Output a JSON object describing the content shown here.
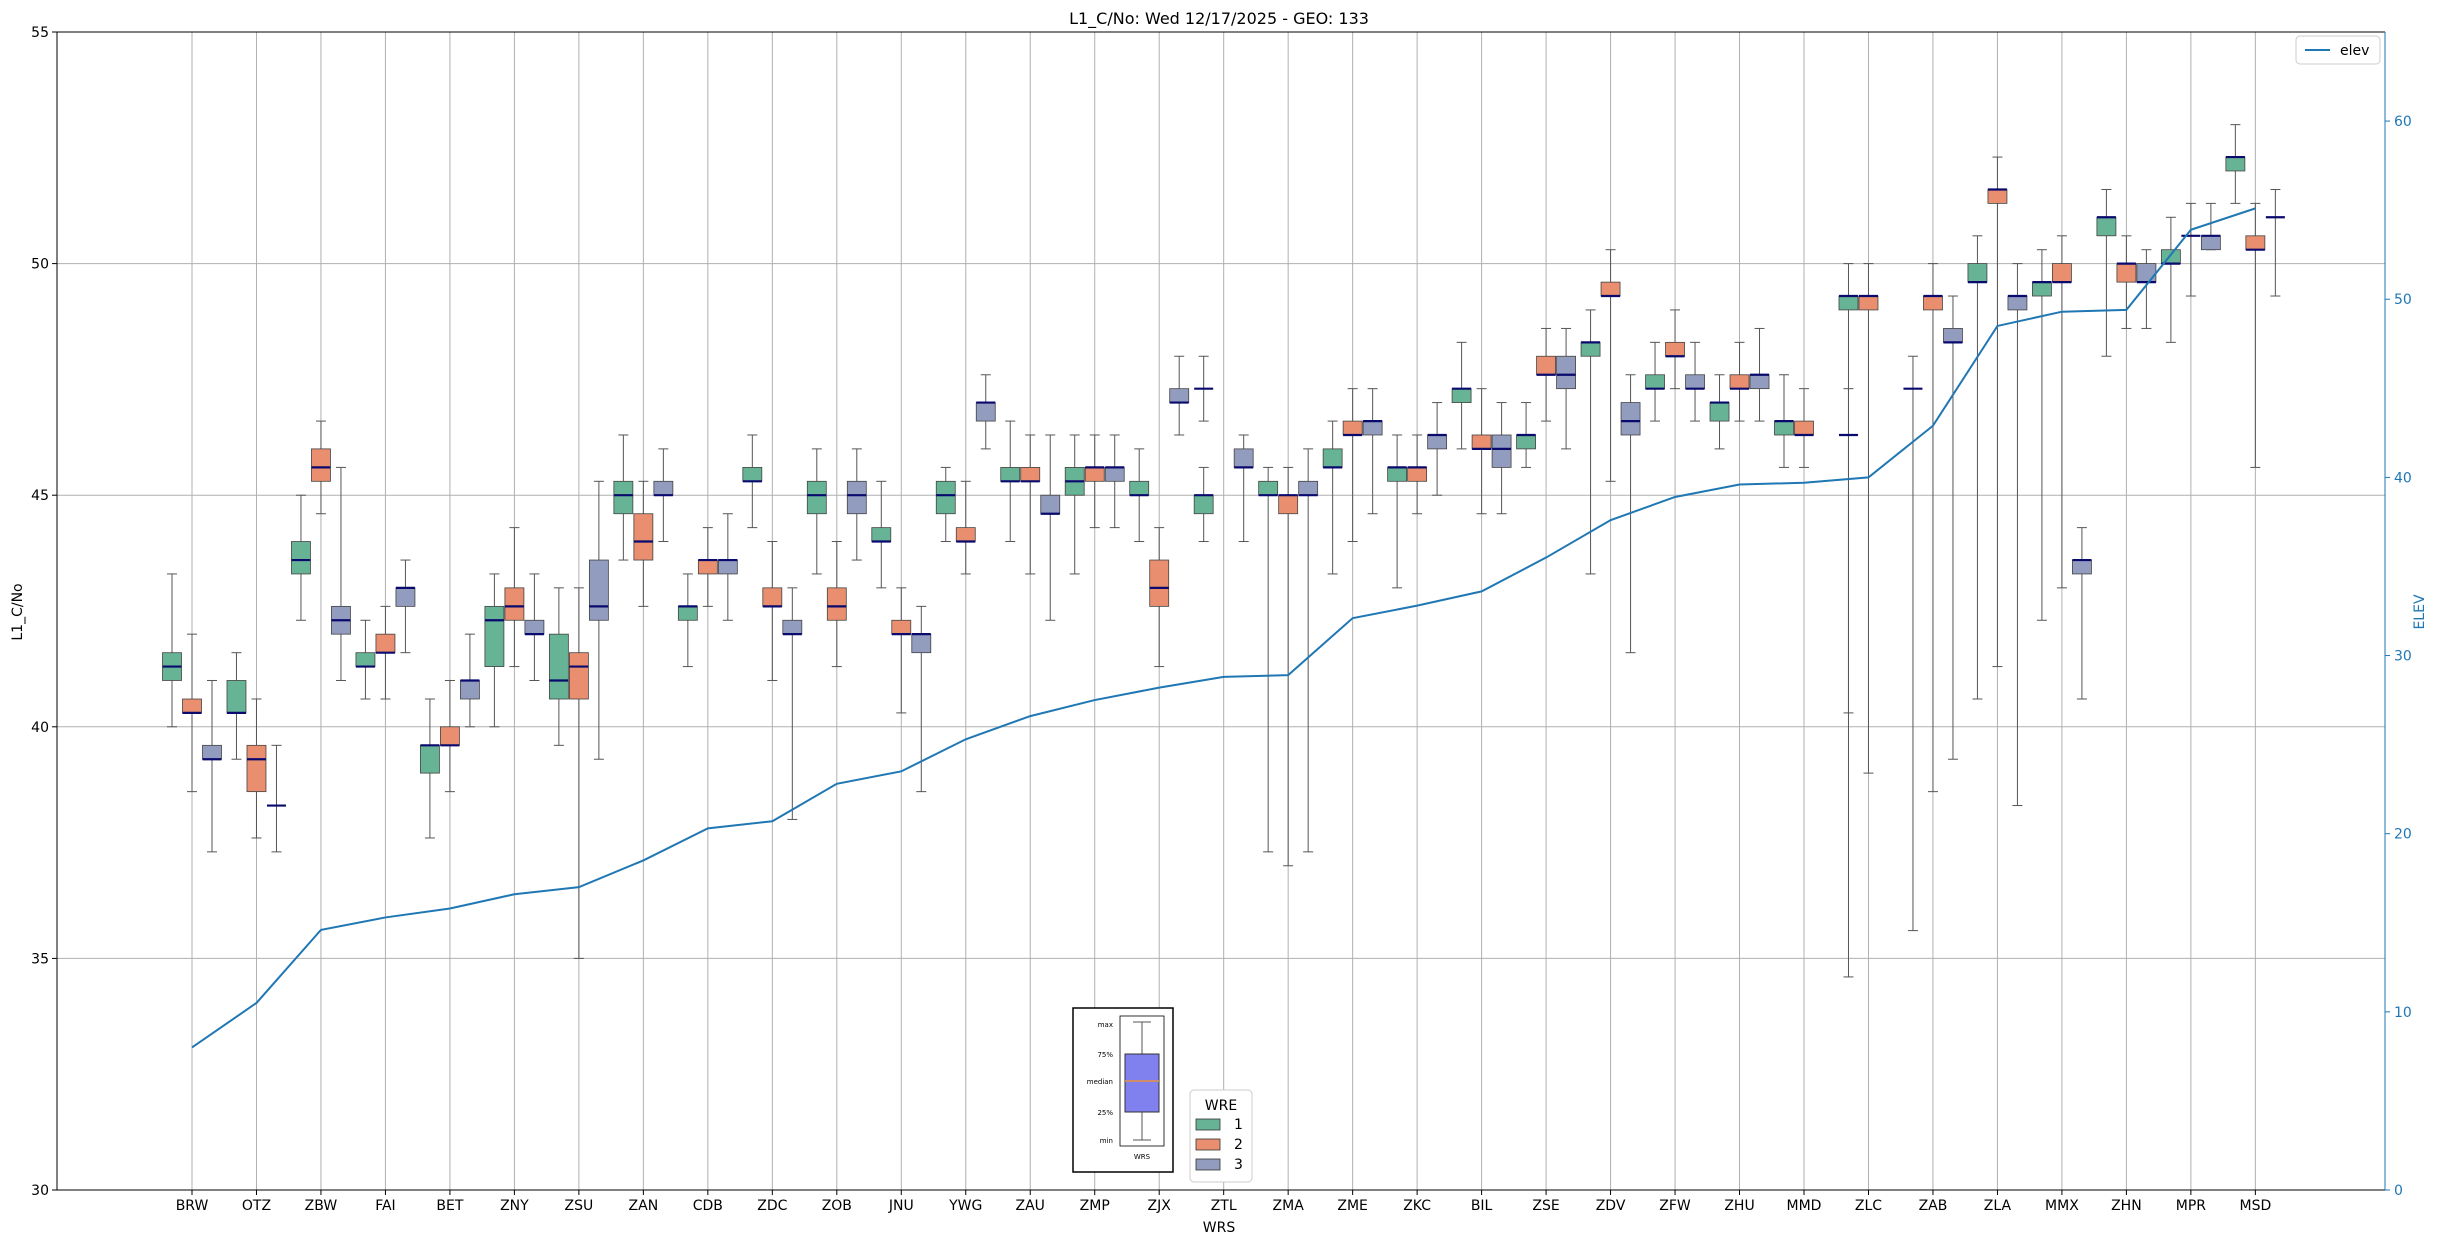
{
  "chart_data": {
    "type": "box",
    "title": "L1_C/No: Wed 12/17/2025 - GEO: 133",
    "xlabel": "WRS",
    "ylabel": "L1_C/No",
    "y2label": "ELEV",
    "ylim": [
      30,
      55
    ],
    "y2lim": [
      0,
      65
    ],
    "yticks": [
      30,
      35,
      40,
      45,
      50,
      55
    ],
    "y2ticks": [
      0,
      10,
      20,
      30,
      40,
      50,
      60
    ],
    "grid": true,
    "categories": [
      "BRW",
      "OTZ",
      "ZBW",
      "FAI",
      "BET",
      "ZNY",
      "ZSU",
      "ZAN",
      "CDB",
      "ZDC",
      "ZOB",
      "JNU",
      "YWG",
      "ZAU",
      "ZMP",
      "ZJX",
      "ZTL",
      "ZMA",
      "ZME",
      "ZKC",
      "BIL",
      "ZSE",
      "ZDV",
      "ZFW",
      "ZHU",
      "MMD",
      "ZLC",
      "ZAB",
      "ZLA",
      "MMX",
      "ZHN",
      "MPR",
      "MSD"
    ],
    "legend": {
      "title": "WRE",
      "placement": "bottom-center",
      "entries": [
        {
          "label": "1",
          "color": "#66b395"
        },
        {
          "label": "2",
          "color": "#e98f6f"
        },
        {
          "label": "3",
          "color": "#919cbf"
        }
      ]
    },
    "line_legend": {
      "label": "elev",
      "color": "#1f77b4",
      "placement": "top-right"
    },
    "box_key": {
      "labels": {
        "max": "max",
        "q3": "75%",
        "median": "median",
        "q1": "25%",
        "min": "min"
      },
      "caption": "WRS",
      "fill": "#8080ee"
    },
    "series": [
      {
        "name": "1",
        "color": "#66b395",
        "boxes": [
          {
            "cat": "BRW",
            "min": 40.0,
            "q1": 41.0,
            "median": 41.3,
            "q3": 41.6,
            "max": 43.3
          },
          {
            "cat": "OTZ",
            "min": 39.3,
            "q1": 40.3,
            "median": 40.3,
            "q3": 41.0,
            "max": 41.6
          },
          {
            "cat": "ZBW",
            "min": 42.3,
            "q1": 43.3,
            "median": 43.6,
            "q3": 44.0,
            "max": 45.0
          },
          {
            "cat": "FAI",
            "min": 40.6,
            "q1": 41.3,
            "median": 41.3,
            "q3": 41.6,
            "max": 42.3
          },
          {
            "cat": "BET",
            "min": 37.6,
            "q1": 39.0,
            "median": 39.6,
            "q3": 39.6,
            "max": 40.6
          },
          {
            "cat": "ZNY",
            "min": 40.0,
            "q1": 41.3,
            "median": 42.3,
            "q3": 42.6,
            "max": 43.3
          },
          {
            "cat": "ZSU",
            "min": 39.6,
            "q1": 40.6,
            "median": 41.0,
            "q3": 42.0,
            "max": 43.0
          },
          {
            "cat": "ZAN",
            "min": 43.6,
            "q1": 44.6,
            "median": 45.0,
            "q3": 45.3,
            "max": 46.3
          },
          {
            "cat": "CDB",
            "min": 41.3,
            "q1": 42.3,
            "median": 42.6,
            "q3": 42.6,
            "max": 43.3
          },
          {
            "cat": "ZDC",
            "min": 44.3,
            "q1": 45.3,
            "median": 45.3,
            "q3": 45.6,
            "max": 46.3
          },
          {
            "cat": "ZOB",
            "min": 43.3,
            "q1": 44.6,
            "median": 45.0,
            "q3": 45.3,
            "max": 46.0
          },
          {
            "cat": "JNU",
            "min": 43.0,
            "q1": 44.0,
            "median": 44.0,
            "q3": 44.3,
            "max": 45.3
          },
          {
            "cat": "YWG",
            "min": 44.0,
            "q1": 44.6,
            "median": 45.0,
            "q3": 45.3,
            "max": 45.6
          },
          {
            "cat": "ZAU",
            "min": 44.0,
            "q1": 45.3,
            "median": 45.3,
            "q3": 45.6,
            "max": 46.6
          },
          {
            "cat": "ZMP",
            "min": 43.3,
            "q1": 45.0,
            "median": 45.3,
            "q3": 45.6,
            "max": 46.3
          },
          {
            "cat": "ZJX",
            "min": 44.0,
            "q1": 45.0,
            "median": 45.0,
            "q3": 45.3,
            "max": 46.0
          },
          {
            "cat": "ZTL",
            "min": 44.0,
            "q1": 44.6,
            "median": 45.0,
            "q3": 45.0,
            "max": 45.6
          },
          {
            "cat": "ZMA",
            "min": 37.3,
            "q1": 45.0,
            "median": 45.0,
            "q3": 45.3,
            "max": 45.6
          },
          {
            "cat": "ZME",
            "min": 43.3,
            "q1": 45.6,
            "median": 45.6,
            "q3": 46.0,
            "max": 46.6
          },
          {
            "cat": "ZKC",
            "min": 43.0,
            "q1": 45.3,
            "median": 45.6,
            "q3": 45.6,
            "max": 46.3
          },
          {
            "cat": "BIL",
            "min": 46.0,
            "q1": 47.0,
            "median": 47.3,
            "q3": 47.3,
            "max": 48.3
          },
          {
            "cat": "ZSE",
            "min": 45.6,
            "q1": 46.0,
            "median": 46.3,
            "q3": 46.3,
            "max": 47.0
          },
          {
            "cat": "ZDV",
            "min": 43.3,
            "q1": 48.0,
            "median": 48.3,
            "q3": 48.3,
            "max": 49.0
          },
          {
            "cat": "ZFW",
            "min": 46.6,
            "q1": 47.3,
            "median": 47.3,
            "q3": 47.6,
            "max": 48.3
          },
          {
            "cat": "ZHU",
            "min": 46.0,
            "q1": 46.6,
            "median": 47.0,
            "q3": 47.0,
            "max": 47.6
          },
          {
            "cat": "MMD",
            "min": 45.6,
            "q1": 46.3,
            "median": 46.6,
            "q3": 46.6,
            "max": 47.6
          },
          {
            "cat": "ZLC",
            "min": 40.3,
            "q1": 49.0,
            "median": 49.3,
            "q3": 49.3,
            "max": 50.0
          },
          {
            "cat": "ZLA",
            "min": 40.6,
            "q1": 49.6,
            "median": 49.6,
            "q3": 50.0,
            "max": 50.6
          },
          {
            "cat": "MMX",
            "min": 42.3,
            "q1": 49.3,
            "median": 49.6,
            "q3": 49.6,
            "max": 50.3
          },
          {
            "cat": "ZHN",
            "min": 48.0,
            "q1": 50.6,
            "median": 51.0,
            "q3": 51.0,
            "max": 51.6
          },
          {
            "cat": "MPR",
            "min": 48.3,
            "q1": 50.0,
            "median": 50.0,
            "q3": 50.3,
            "max": 51.0
          },
          {
            "cat": "MSD",
            "min": 51.3,
            "q1": 52.0,
            "median": 52.3,
            "q3": 52.3,
            "max": 53.0
          }
        ]
      },
      {
        "name": "2",
        "color": "#e98f6f",
        "boxes": [
          {
            "cat": "BRW",
            "min": 38.6,
            "q1": 40.3,
            "median": 40.3,
            "q3": 40.6,
            "max": 42.0
          },
          {
            "cat": "OTZ",
            "min": 37.6,
            "q1": 38.6,
            "median": 39.3,
            "q3": 39.6,
            "max": 40.6
          },
          {
            "cat": "ZBW",
            "min": 44.6,
            "q1": 45.3,
            "median": 45.6,
            "q3": 46.0,
            "max": 46.6
          },
          {
            "cat": "FAI",
            "min": 40.6,
            "q1": 41.6,
            "median": 41.6,
            "q3": 42.0,
            "max": 42.6
          },
          {
            "cat": "BET",
            "min": 38.6,
            "q1": 39.6,
            "median": 39.6,
            "q3": 40.0,
            "max": 41.0
          },
          {
            "cat": "ZNY",
            "min": 41.3,
            "q1": 42.3,
            "median": 42.6,
            "q3": 43.0,
            "max": 44.3
          },
          {
            "cat": "ZSU",
            "min": 35.0,
            "q1": 40.6,
            "median": 41.3,
            "q3": 41.6,
            "max": 43.0
          },
          {
            "cat": "ZAN",
            "min": 42.6,
            "q1": 43.6,
            "median": 44.0,
            "q3": 44.6,
            "max": 45.3
          },
          {
            "cat": "CDB",
            "min": 42.6,
            "q1": 43.3,
            "median": 43.6,
            "q3": 43.6,
            "max": 44.3
          },
          {
            "cat": "ZDC",
            "min": 41.0,
            "q1": 42.6,
            "median": 42.6,
            "q3": 43.0,
            "max": 44.0
          },
          {
            "cat": "ZOB",
            "min": 41.3,
            "q1": 42.3,
            "median": 42.6,
            "q3": 43.0,
            "max": 44.0
          },
          {
            "cat": "JNU",
            "min": 40.3,
            "q1": 42.0,
            "median": 42.0,
            "q3": 42.3,
            "max": 43.0
          },
          {
            "cat": "YWG",
            "min": 43.3,
            "q1": 44.0,
            "median": 44.0,
            "q3": 44.3,
            "max": 45.3
          },
          {
            "cat": "ZAU",
            "min": 43.3,
            "q1": 45.3,
            "median": 45.3,
            "q3": 45.6,
            "max": 46.3
          },
          {
            "cat": "ZMP",
            "min": 44.3,
            "q1": 45.3,
            "median": 45.6,
            "q3": 45.6,
            "max": 46.3
          },
          {
            "cat": "ZJX",
            "min": 41.3,
            "q1": 42.6,
            "median": 43.0,
            "q3": 43.6,
            "max": 44.3
          },
          {
            "cat": "ZMA",
            "min": 37.0,
            "q1": 44.6,
            "median": 45.0,
            "q3": 45.0,
            "max": 45.6
          },
          {
            "cat": "ZME",
            "min": 44.0,
            "q1": 46.3,
            "median": 46.3,
            "q3": 46.6,
            "max": 47.3
          },
          {
            "cat": "ZKC",
            "min": 44.6,
            "q1": 45.3,
            "median": 45.6,
            "q3": 45.6,
            "max": 46.3
          },
          {
            "cat": "BIL",
            "min": 44.6,
            "q1": 46.0,
            "median": 46.0,
            "q3": 46.3,
            "max": 47.3
          },
          {
            "cat": "ZSE",
            "min": 46.6,
            "q1": 47.6,
            "median": 47.6,
            "q3": 48.0,
            "max": 48.6
          },
          {
            "cat": "ZDV",
            "min": 45.3,
            "q1": 49.3,
            "median": 49.3,
            "q3": 49.6,
            "max": 50.3
          },
          {
            "cat": "ZFW",
            "min": 47.3,
            "q1": 48.0,
            "median": 48.0,
            "q3": 48.3,
            "max": 49.0
          },
          {
            "cat": "ZHU",
            "min": 46.6,
            "q1": 47.3,
            "median": 47.3,
            "q3": 47.6,
            "max": 48.3
          },
          {
            "cat": "MMD",
            "min": 45.6,
            "q1": 46.3,
            "median": 46.3,
            "q3": 46.6,
            "max": 47.3
          },
          {
            "cat": "ZLC",
            "min": 39.0,
            "q1": 49.0,
            "median": 49.3,
            "q3": 49.3,
            "max": 50.0
          },
          {
            "cat": "ZAB",
            "min": 38.6,
            "q1": 49.0,
            "median": 49.3,
            "q3": 49.3,
            "max": 50.0
          },
          {
            "cat": "ZLA",
            "min": 41.3,
            "q1": 51.3,
            "median": 51.6,
            "q3": 51.6,
            "max": 52.3
          },
          {
            "cat": "MMX",
            "min": 43.0,
            "q1": 49.6,
            "median": 49.6,
            "q3": 50.0,
            "max": 50.6
          },
          {
            "cat": "ZHN",
            "min": 48.6,
            "q1": 49.6,
            "median": 50.0,
            "q3": 50.0,
            "max": 50.6
          },
          {
            "cat": "MPR",
            "min": 49.3,
            "q1": 50.6,
            "median": 50.6,
            "q3": 50.6,
            "max": 51.3
          },
          {
            "cat": "MSD",
            "min": 45.6,
            "q1": 50.3,
            "median": 50.3,
            "q3": 50.6,
            "max": 51.3
          }
        ]
      },
      {
        "name": "3",
        "color": "#919cbf",
        "boxes": [
          {
            "cat": "BRW",
            "min": 37.3,
            "q1": 39.3,
            "median": 39.3,
            "q3": 39.6,
            "max": 41.0
          },
          {
            "cat": "OTZ",
            "min": 37.3,
            "q1": 38.3,
            "median": 38.3,
            "q3": 38.3,
            "max": 39.6
          },
          {
            "cat": "ZBW",
            "min": 41.0,
            "q1": 42.0,
            "median": 42.3,
            "q3": 42.6,
            "max": 45.6
          },
          {
            "cat": "FAI",
            "min": 41.6,
            "q1": 42.6,
            "median": 43.0,
            "q3": 43.0,
            "max": 43.6
          },
          {
            "cat": "BET",
            "min": 40.0,
            "q1": 40.6,
            "median": 41.0,
            "q3": 41.0,
            "max": 42.0
          },
          {
            "cat": "ZNY",
            "min": 41.0,
            "q1": 42.0,
            "median": 42.0,
            "q3": 42.3,
            "max": 43.3
          },
          {
            "cat": "ZSU",
            "min": 39.3,
            "q1": 42.3,
            "median": 42.6,
            "q3": 43.6,
            "max": 45.3
          },
          {
            "cat": "ZAN",
            "min": 44.0,
            "q1": 45.0,
            "median": 45.0,
            "q3": 45.3,
            "max": 46.0
          },
          {
            "cat": "CDB",
            "min": 42.3,
            "q1": 43.3,
            "median": 43.6,
            "q3": 43.6,
            "max": 44.6
          },
          {
            "cat": "ZDC",
            "min": 38.0,
            "q1": 42.0,
            "median": 42.0,
            "q3": 42.3,
            "max": 43.0
          },
          {
            "cat": "ZOB",
            "min": 43.6,
            "q1": 44.6,
            "median": 45.0,
            "q3": 45.3,
            "max": 46.0
          },
          {
            "cat": "JNU",
            "min": 38.6,
            "q1": 41.6,
            "median": 42.0,
            "q3": 42.0,
            "max": 42.6
          },
          {
            "cat": "YWG",
            "min": 46.0,
            "q1": 46.6,
            "median": 47.0,
            "q3": 47.0,
            "max": 47.6
          },
          {
            "cat": "ZAU",
            "min": 42.3,
            "q1": 44.6,
            "median": 44.6,
            "q3": 45.0,
            "max": 46.3
          },
          {
            "cat": "ZMP",
            "min": 44.3,
            "q1": 45.3,
            "median": 45.6,
            "q3": 45.6,
            "max": 46.3
          },
          {
            "cat": "ZJX",
            "min": 46.3,
            "q1": 47.0,
            "median": 47.0,
            "q3": 47.3,
            "max": 48.0
          },
          {
            "cat": "ZTL",
            "min": 44.0,
            "q1": 45.6,
            "median": 45.6,
            "q3": 46.0,
            "max": 46.3
          },
          {
            "cat": "ZMA",
            "min": 37.3,
            "q1": 45.0,
            "median": 45.0,
            "q3": 45.3,
            "max": 46.0
          },
          {
            "cat": "ZME",
            "min": 44.6,
            "q1": 46.3,
            "median": 46.6,
            "q3": 46.6,
            "max": 47.3
          },
          {
            "cat": "ZKC",
            "min": 45.0,
            "q1": 46.0,
            "median": 46.3,
            "q3": 46.3,
            "max": 47.0
          },
          {
            "cat": "BIL",
            "min": 44.6,
            "q1": 45.6,
            "median": 46.0,
            "q3": 46.3,
            "max": 47.0
          },
          {
            "cat": "ZSE",
            "min": 46.0,
            "q1": 47.3,
            "median": 47.6,
            "q3": 48.0,
            "max": 48.6
          },
          {
            "cat": "ZDV",
            "min": 41.6,
            "q1": 46.3,
            "median": 46.6,
            "q3": 47.0,
            "max": 47.6
          },
          {
            "cat": "ZFW",
            "min": 46.6,
            "q1": 47.3,
            "median": 47.3,
            "q3": 47.6,
            "max": 48.3
          },
          {
            "cat": "ZHU",
            "min": 46.6,
            "q1": 47.3,
            "median": 47.6,
            "q3": 47.6,
            "max": 48.6
          },
          {
            "cat": "ZAB",
            "min": 39.3,
            "q1": 48.3,
            "median": 48.3,
            "q3": 48.6,
            "max": 49.3
          },
          {
            "cat": "ZLA",
            "min": 38.3,
            "q1": 49.0,
            "median": 49.3,
            "q3": 49.3,
            "max": 50.0
          },
          {
            "cat": "MMX",
            "min": 40.6,
            "q1": 43.3,
            "median": 43.6,
            "q3": 43.6,
            "max": 44.3
          },
          {
            "cat": "ZHN",
            "min": 48.6,
            "q1": 49.6,
            "median": 49.6,
            "q3": 50.0,
            "max": 50.3
          },
          {
            "cat": "MPR",
            "min": 50.3,
            "q1": 50.3,
            "median": 50.6,
            "q3": 50.6,
            "max": 51.3
          },
          {
            "cat": "ZTL",
            "min": 46.6,
            "q1": 47.3,
            "median": 47.3,
            "q3": 47.3,
            "max": 48.0,
            "slot": "1"
          },
          {
            "cat": "ZLC",
            "min": 34.6,
            "q1": 46.3,
            "median": 46.3,
            "q3": 46.3,
            "max": 47.3,
            "slot": "1"
          },
          {
            "cat": "ZAB",
            "min": 35.6,
            "q1": 47.3,
            "median": 47.3,
            "q3": 47.3,
            "max": 48.0,
            "slot": "1"
          },
          {
            "cat": "MSD",
            "min": 49.3,
            "q1": 51.0,
            "median": 51.0,
            "q3": 51.0,
            "max": 51.6
          }
        ]
      }
    ],
    "elevation": {
      "name": "elev",
      "values": [
        8,
        10.5,
        14.6,
        15.3,
        15.8,
        16.6,
        17,
        18.5,
        20.3,
        20.7,
        22.8,
        23.5,
        25.3,
        26.6,
        27.5,
        28.2,
        28.8,
        28.9,
        32.1,
        32.8,
        33.6,
        35.5,
        37.6,
        38.9,
        39.6,
        39.7,
        40,
        42.9,
        48.5,
        49.3,
        49.4,
        53.9,
        55.1
      ]
    }
  }
}
